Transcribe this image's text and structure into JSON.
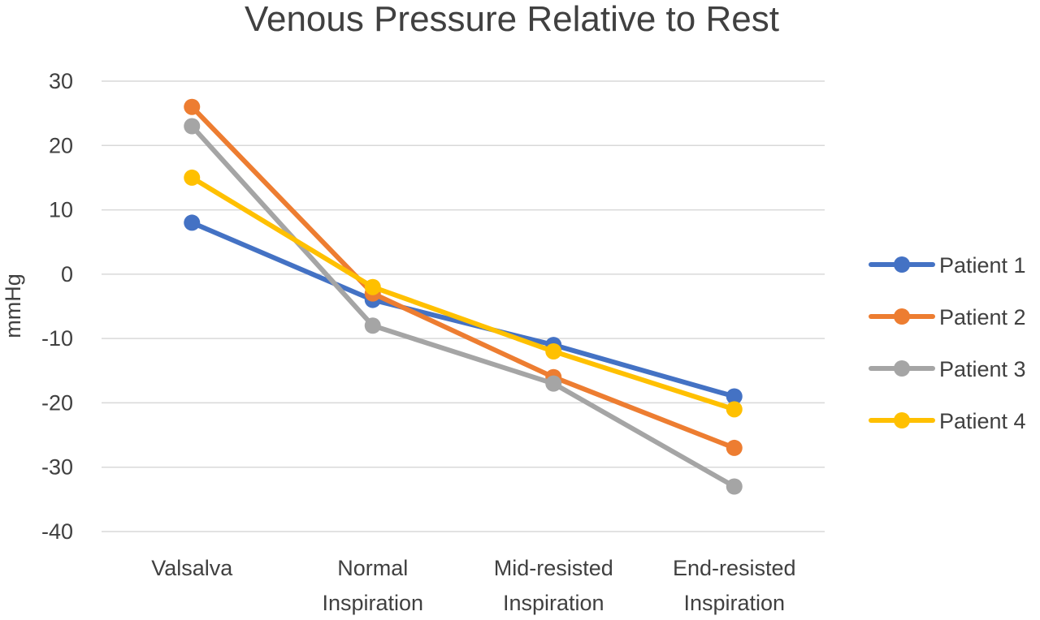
{
  "chart_data": {
    "type": "line",
    "title": "Venous Pressure Relative to Rest",
    "xlabel": "",
    "ylabel": "mmHg",
    "ylim": [
      -40,
      30
    ],
    "yticks": [
      30,
      20,
      10,
      0,
      -10,
      -20,
      -30,
      -40
    ],
    "grid": true,
    "legend_position": "right",
    "categories": [
      [
        "Valsalva"
      ],
      [
        "Normal",
        "Inspiration"
      ],
      [
        "Mid-resisted",
        "Inspiration"
      ],
      [
        "End-resisted",
        "Inspiration"
      ]
    ],
    "series": [
      {
        "name": "Patient 1",
        "color": "#4472c4",
        "values": [
          8,
          -4,
          -11,
          -19
        ]
      },
      {
        "name": "Patient 2",
        "color": "#ed7d31",
        "values": [
          26,
          -3,
          -16,
          -27
        ]
      },
      {
        "name": "Patient 3",
        "color": "#a5a5a5",
        "values": [
          23,
          -8,
          -17,
          -33
        ]
      },
      {
        "name": "Patient 4",
        "color": "#ffc000",
        "values": [
          15,
          -2,
          -12,
          -21
        ]
      }
    ]
  }
}
